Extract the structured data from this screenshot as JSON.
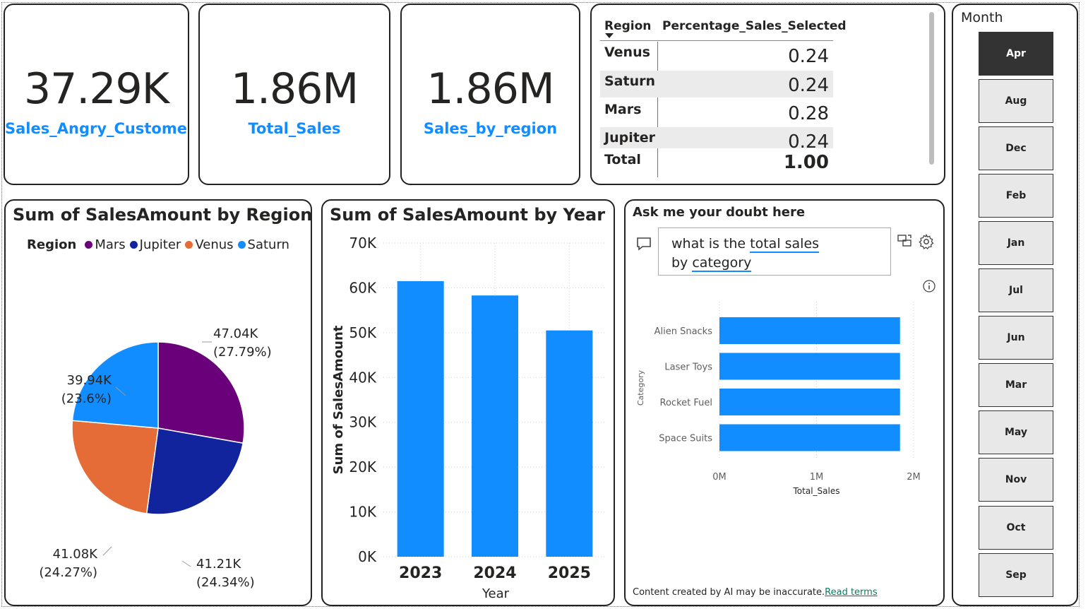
{
  "kpis": [
    {
      "value": "37.29K",
      "label": "Sales_Angry_Customer"
    },
    {
      "value": "1.86M",
      "label": "Total_Sales"
    },
    {
      "value": "1.86M",
      "label": "Sales_by_region"
    }
  ],
  "table": {
    "col1": "Region",
    "col2": "Percentage_Sales_Selected",
    "rows": [
      {
        "region": "Venus",
        "value": "0.24"
      },
      {
        "region": "Saturn",
        "value": "0.24"
      },
      {
        "region": "Mars",
        "value": "0.28"
      },
      {
        "region": "Jupiter",
        "value": "0.24"
      }
    ],
    "total_label": "Total",
    "total_value": "1.00"
  },
  "slicer": {
    "title": "Month",
    "items": [
      "Apr",
      "Aug",
      "Dec",
      "Feb",
      "Jan",
      "Jul",
      "Jun",
      "Mar",
      "May",
      "Nov",
      "Oct",
      "Sep"
    ],
    "selected": "Apr"
  },
  "pie": {
    "title": "Sum of SalesAmount by Region",
    "legend_title": "Region",
    "colors": {
      "Mars": "#6B007B",
      "Jupiter": "#12239E",
      "Venus": "#E66C37",
      "Saturn": "#118DFF"
    }
  },
  "bar": {
    "title": "Sum of SalesAmount by Year",
    "color": "#118DFF"
  },
  "qa": {
    "title": "Ask me your doubt here",
    "question_line1_plain": "what is the ",
    "question_line1_link": "total sales",
    "question_line2_plain": "by ",
    "question_line2_link": "category",
    "footer_text": "Content created by AI may be inaccurate.",
    "footer_link": "Read terms",
    "color": "#118DFF"
  },
  "chart_data": [
    {
      "type": "pie",
      "title": "Sum of SalesAmount by Region",
      "legend": [
        "Mars",
        "Jupiter",
        "Venus",
        "Saturn"
      ],
      "categories": [
        "Mars",
        "Jupiter",
        "Venus",
        "Saturn"
      ],
      "values": [
        47040,
        41210,
        41080,
        39940
      ],
      "labels": [
        {
          "value": "47.04K",
          "pct": "(27.79%)"
        },
        {
          "value": "41.21K",
          "pct": "(24.34%)"
        },
        {
          "value": "41.08K",
          "pct": "(24.27%)"
        },
        {
          "value": "39.94K",
          "pct": "(23.6%)"
        }
      ]
    },
    {
      "type": "bar",
      "title": "Sum of SalesAmount by Year",
      "categories": [
        "2023",
        "2024",
        "2025"
      ],
      "values": [
        61500,
        58300,
        50500
      ],
      "xlabel": "Year",
      "ylabel": "Sum of SalesAmount",
      "ylim": [
        0,
        70000
      ],
      "yticks": [
        "0K",
        "10K",
        "20K",
        "30K",
        "40K",
        "50K",
        "60K",
        "70K"
      ],
      "grid": true
    },
    {
      "type": "bar",
      "orientation": "horizontal",
      "categories": [
        "Alien Snacks",
        "Laser Toys",
        "Rocket Fuel",
        "Space Suits"
      ],
      "values": [
        1860000,
        1860000,
        1860000,
        1860000
      ],
      "xlabel": "Total_Sales",
      "ylabel": "Category",
      "xlim": [
        0,
        2000000
      ],
      "xticks": [
        "0M",
        "1M",
        "2M"
      ],
      "grid": true
    }
  ]
}
